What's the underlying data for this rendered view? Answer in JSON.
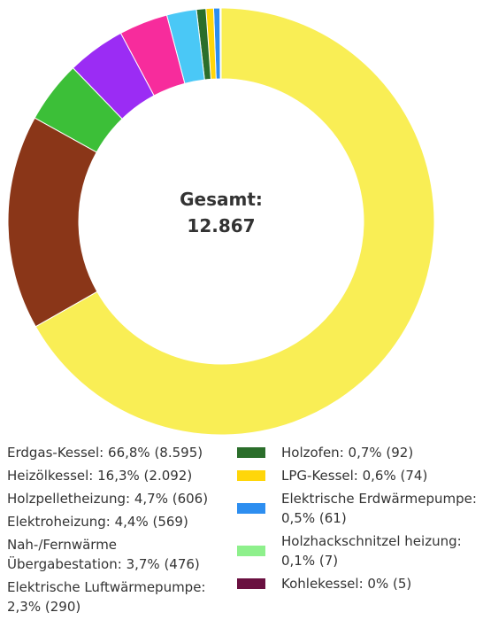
{
  "chart_data": {
    "type": "donut",
    "title": "Gesamt:",
    "total": {
      "value": 12867,
      "label": "12.867"
    },
    "categories": [
      "Erdgas-Kessel:",
      "Heizölkessel:",
      "Holzpelletheizung:",
      "Elektroheizung:",
      "Nah-/Fernwärme Übergabestation:",
      "Elektrische Luftwärmepumpe:",
      "Holzofen:",
      "LPG-Kessel:",
      "Elektrische Erdwärmepumpe:",
      "Holzhackschnitzel heizung:",
      "Kohlekessel:"
    ],
    "values": [
      8595,
      2092,
      606,
      569,
      476,
      290,
      92,
      74,
      61,
      7,
      5
    ],
    "value_labels": [
      "66,8% (8.595)",
      "16,3% (2.092)",
      "4,7% (606)",
      "4,4% (569)",
      "3,7% (476)",
      "2,3% (290)",
      "0,7% (92)",
      "0,6% (74)",
      "0,5% (61)",
      "0,1% (7)",
      "0% (5)"
    ],
    "colors": [
      "#f9ee55",
      "#8a3618",
      "#3cbf38",
      "#9b2cf4",
      "#f72c9c",
      "#4ac8f6",
      "#2b6e2b",
      "#ffd60a",
      "#2d8ef0",
      "#8ef08c",
      "#6a1040"
    ]
  }
}
